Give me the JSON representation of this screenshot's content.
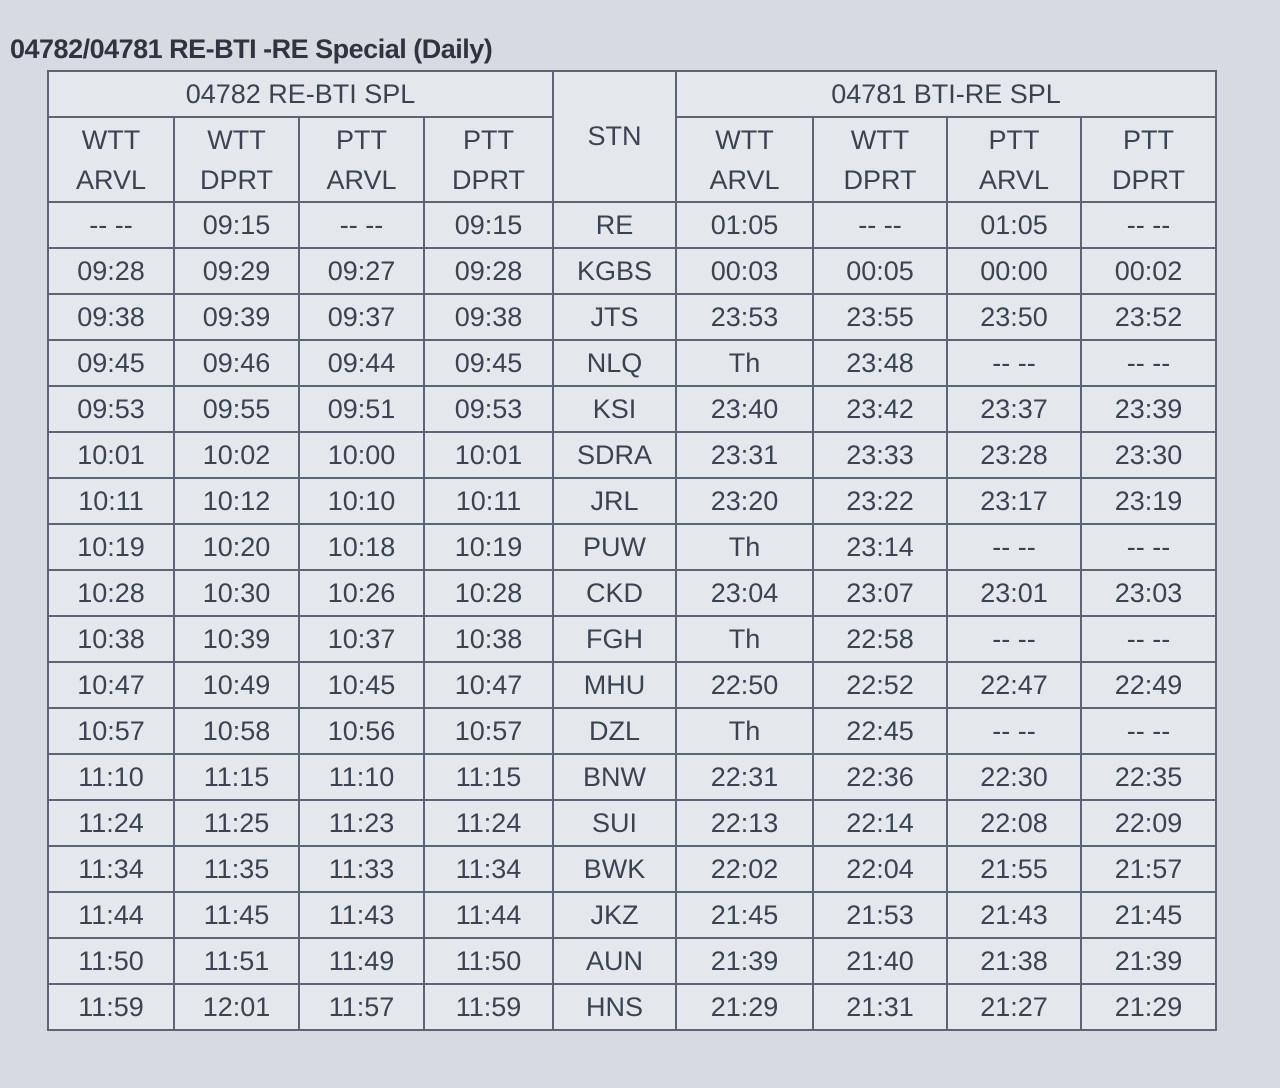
{
  "title": "04782/04781 RE-BTI -RE Special (Daily)",
  "table": {
    "group_headers": [
      "04782 RE-BTI SPL",
      "04781 BTI-RE  SPL"
    ],
    "station_header": "STN",
    "left_headers": [
      "WTT ARVL",
      "WTT DPRT",
      "PTT ARVL",
      "PTT DPRT"
    ],
    "right_headers": [
      "WTT ARVL",
      "WTT DPRT",
      "PTT ARVL",
      "PTT DPRT"
    ],
    "rows": [
      [
        "-- --",
        "09:15",
        "-- --",
        "09:15",
        "RE",
        "01:05",
        "-- --",
        "01:05",
        "-- --"
      ],
      [
        "09:28",
        "09:29",
        "09:27",
        "09:28",
        "KGBS",
        "00:03",
        "00:05",
        "00:00",
        "00:02"
      ],
      [
        "09:38",
        "09:39",
        "09:37",
        "09:38",
        "JTS",
        "23:53",
        "23:55",
        "23:50",
        "23:52"
      ],
      [
        "09:45",
        "09:46",
        "09:44",
        "09:45",
        "NLQ",
        "Th",
        "23:48",
        "-- --",
        "-- --"
      ],
      [
        "09:53",
        "09:55",
        "09:51",
        "09:53",
        "KSI",
        "23:40",
        "23:42",
        "23:37",
        "23:39"
      ],
      [
        "10:01",
        "10:02",
        "10:00",
        "10:01",
        "SDRA",
        "23:31",
        "23:33",
        "23:28",
        "23:30"
      ],
      [
        "10:11",
        "10:12",
        "10:10",
        "10:11",
        "JRL",
        "23:20",
        "23:22",
        "23:17",
        "23:19"
      ],
      [
        "10:19",
        "10:20",
        "10:18",
        "10:19",
        "PUW",
        "Th",
        "23:14",
        "-- --",
        "-- --"
      ],
      [
        "10:28",
        "10:30",
        "10:26",
        "10:28",
        "CKD",
        "23:04",
        "23:07",
        "23:01",
        "23:03"
      ],
      [
        "10:38",
        "10:39",
        "10:37",
        "10:38",
        "FGH",
        "Th",
        "22:58",
        "-- --",
        "-- --"
      ],
      [
        "10:47",
        "10:49",
        "10:45",
        "10:47",
        "MHU",
        "22:50",
        "22:52",
        "22:47",
        "22:49"
      ],
      [
        "10:57",
        "10:58",
        "10:56",
        "10:57",
        "DZL",
        "Th",
        "22:45",
        "-- --",
        "-- --"
      ],
      [
        "11:10",
        "11:15",
        "11:10",
        "11:15",
        "BNW",
        "22:31",
        "22:36",
        "22:30",
        "22:35"
      ],
      [
        "11:24",
        "11:25",
        "11:23",
        "11:24",
        "SUI",
        "22:13",
        "22:14",
        "22:08",
        "22:09"
      ],
      [
        "11:34",
        "11:35",
        "11:33",
        "11:34",
        "BWK",
        "22:02",
        "22:04",
        "21:55",
        "21:57"
      ],
      [
        "11:44",
        "11:45",
        "11:43",
        "11:44",
        "JKZ",
        "21:45",
        "21:53",
        "21:43",
        "21:45"
      ],
      [
        "11:50",
        "11:51",
        "11:49",
        "11:50",
        "AUN",
        "21:39",
        "21:40",
        "21:38",
        "21:39"
      ],
      [
        "11:59",
        "12:01",
        "11:57",
        "11:59",
        "HNS",
        "21:29",
        "21:31",
        "21:27",
        "21:29"
      ]
    ]
  }
}
